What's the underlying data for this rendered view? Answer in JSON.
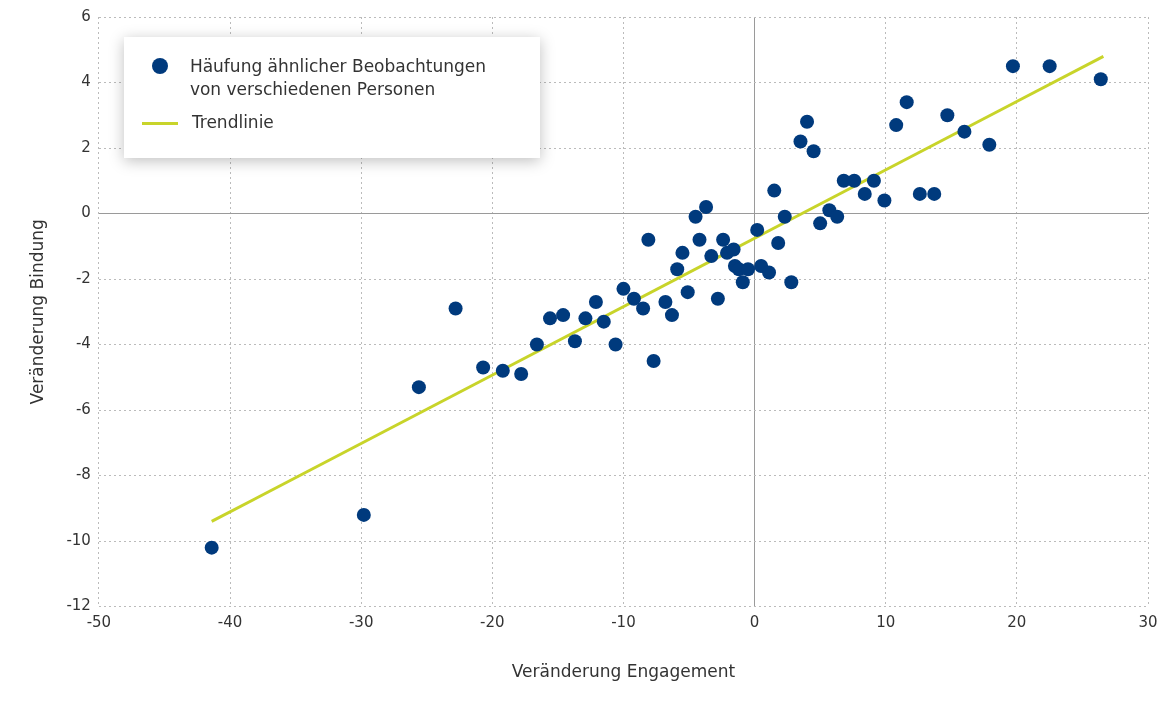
{
  "chart_data": {
    "type": "scatter",
    "xlabel": "Veränderung Engagement",
    "ylabel": "Veränderung Bindung",
    "xlim": [
      -50,
      30
    ],
    "xticks": [
      -50,
      -40,
      -30,
      -20,
      -10,
      0,
      10,
      20,
      30
    ],
    "ylim": [
      -12,
      6
    ],
    "yticks": [
      -12,
      -10,
      -8,
      -6,
      -4,
      -2,
      0,
      2,
      4,
      6
    ],
    "grid": true,
    "legend": "top left",
    "marker": "circle",
    "series": [
      {
        "name": "Häufung ähnlicher Beobachtungen von verschiedenen Personen",
        "type": "scatter",
        "color": "#003a7d",
        "x": [
          -41.4,
          -29.8,
          -25.6,
          -22.8,
          -20.7,
          -19.2,
          -17.8,
          -16.6,
          -15.6,
          -14.6,
          -13.7,
          -12.9,
          -12.1,
          -11.5,
          -10.6,
          -10.0,
          -9.2,
          -8.5,
          -8.1,
          -7.7,
          -6.8,
          -6.3,
          -5.9,
          -5.5,
          -5.1,
          -4.5,
          -4.2,
          -3.7,
          -3.3,
          -2.8,
          -2.4,
          -2.1,
          -1.6,
          -1.5,
          -1.2,
          -0.9,
          -0.5,
          0.2,
          0.5,
          1.1,
          1.5,
          1.8,
          2.3,
          2.8,
          3.5,
          4.0,
          4.5,
          5.0,
          5.7,
          6.3,
          6.8,
          7.6,
          8.4,
          9.1,
          9.9,
          10.8,
          11.6,
          12.6,
          13.7,
          14.7,
          16.0,
          17.9,
          19.7,
          22.5,
          26.4
        ],
        "values": [
          -10.2,
          -9.2,
          -5.3,
          -2.9,
          -4.7,
          -4.8,
          -4.9,
          -4.0,
          -3.2,
          -3.1,
          -3.9,
          -3.2,
          -2.7,
          -3.3,
          -4.0,
          -2.3,
          -2.6,
          -2.9,
          -0.8,
          -4.5,
          -2.7,
          -3.1,
          -1.7,
          -1.2,
          -2.4,
          -0.1,
          -0.8,
          0.2,
          -1.3,
          -2.6,
          -0.8,
          -1.2,
          -1.1,
          -1.6,
          -1.7,
          -2.1,
          -1.7,
          -0.5,
          -1.6,
          -1.8,
          0.7,
          -0.9,
          -0.1,
          -2.1,
          2.2,
          2.8,
          1.9,
          -0.3,
          0.1,
          -0.1,
          1.0,
          1.0,
          0.6,
          1.0,
          0.4,
          2.7,
          3.4,
          0.6,
          0.6,
          3.0,
          2.5,
          2.1,
          4.5,
          4.5,
          4.1
        ]
      },
      {
        "name": "Trendlinie",
        "type": "line",
        "color": "#c8d42a",
        "marker": "none",
        "line_style": "solid",
        "x": [
          -41.4,
          26.6
        ],
        "values": [
          -9.4,
          4.8
        ]
      }
    ]
  }
}
